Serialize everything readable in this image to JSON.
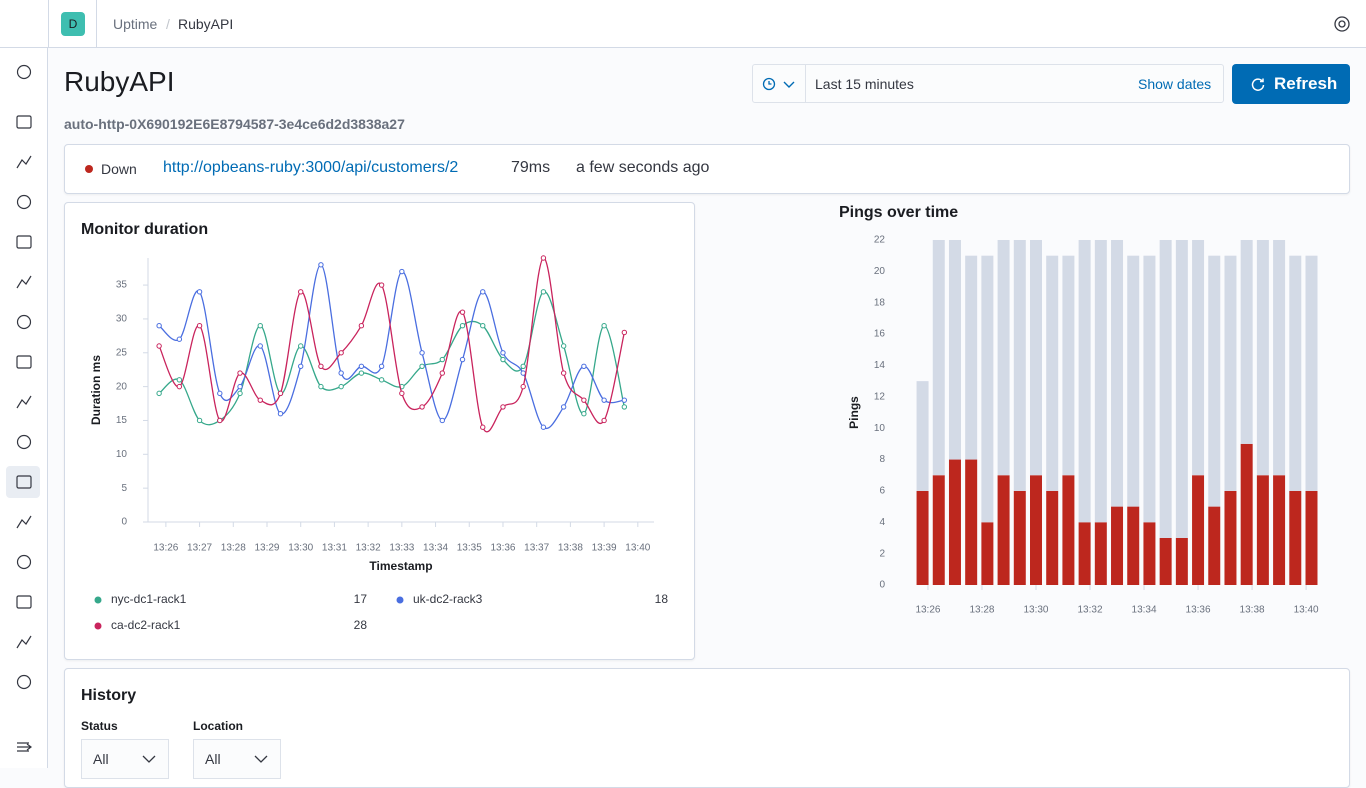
{
  "header": {
    "avatar": "D",
    "breadcrumbs": [
      "Uptime",
      "RubyAPI"
    ]
  },
  "page": {
    "title": "RubyAPI",
    "monitor_id": "auto-http-0X690192E6E8794587-3e4ce6d2d3838a27",
    "time_range": "Last 15 minutes",
    "show_dates": "Show dates",
    "refresh": "Refresh"
  },
  "status": {
    "state": "Down",
    "url": "http://opbeans-ruby:3000/api/customers/2",
    "duration": "79ms",
    "checked": "a few seconds ago"
  },
  "chart_data": [
    {
      "type": "line",
      "title": "Monitor duration",
      "x_label": "Timestamp",
      "y_label": "Duration ms",
      "grid": false,
      "legend": "bottom",
      "x": [
        25.8,
        26.4,
        27.0,
        27.6,
        28.2,
        28.8,
        29.4,
        30.0,
        30.6,
        31.2,
        31.8,
        32.4,
        33.0,
        33.6,
        34.2,
        34.8,
        35.4,
        36.0,
        36.6,
        37.2,
        37.8,
        38.4,
        39.0,
        39.6
      ],
      "xlim": [
        25.47,
        40.48
      ],
      "xticks": [
        {
          "value": 26,
          "label": "13:26"
        },
        {
          "value": 27,
          "label": "13:27"
        },
        {
          "value": 28,
          "label": "13:28"
        },
        {
          "value": 29,
          "label": "13:29"
        },
        {
          "value": 30,
          "label": "13:30"
        },
        {
          "value": 31,
          "label": "13:31"
        },
        {
          "value": 32,
          "label": "13:32"
        },
        {
          "value": 33,
          "label": "13:33"
        },
        {
          "value": 34,
          "label": "13:34"
        },
        {
          "value": 35,
          "label": "13:35"
        },
        {
          "value": 36,
          "label": "13:36"
        },
        {
          "value": 37,
          "label": "13:37"
        },
        {
          "value": 38,
          "label": "13:38"
        },
        {
          "value": 39,
          "label": "13:39"
        },
        {
          "value": 40,
          "label": "13:40"
        }
      ],
      "ylim": [
        0,
        39
      ],
      "yticks": [
        0,
        5,
        10,
        15,
        20,
        25,
        30,
        35
      ],
      "series": [
        {
          "name": "nyc-dc1-rack1",
          "color": "#36a88b",
          "values": [
            19,
            21,
            15,
            15,
            19,
            29,
            19,
            26,
            20,
            20,
            22,
            21,
            20,
            23,
            24,
            29,
            29,
            24,
            23,
            34,
            26,
            16,
            29,
            17
          ]
        },
        {
          "name": "uk-dc2-rack3",
          "color": "#4a6ee0",
          "values": [
            29,
            27,
            34,
            19,
            20,
            26,
            16,
            23,
            38,
            22,
            23,
            23,
            37,
            25,
            15,
            24,
            34,
            25,
            22,
            14,
            17,
            23,
            18,
            18
          ]
        },
        {
          "name": "ca-dc2-rack1",
          "color": "#c9245d",
          "values": [
            26,
            20,
            29,
            15,
            22,
            18,
            19,
            34,
            23,
            25,
            29,
            35,
            19,
            17,
            22,
            31,
            14,
            17,
            20,
            39,
            22,
            18,
            15,
            28
          ]
        }
      ]
    },
    {
      "type": "bar",
      "stacked": true,
      "title": "Pings over time",
      "y_label": "Pings",
      "grid": false,
      "x": [
        25.8,
        26.4,
        27.0,
        27.6,
        28.2,
        28.8,
        29.4,
        30.0,
        30.6,
        31.2,
        31.8,
        32.4,
        33.0,
        33.6,
        34.2,
        34.8,
        35.4,
        36.0,
        36.6,
        37.2,
        37.8,
        38.4,
        39.0,
        39.6,
        40.2
      ],
      "xlim": [
        25.15,
        40.7
      ],
      "xticks": [
        {
          "value": 26,
          "label": "13:26"
        },
        {
          "value": 28,
          "label": "13:28"
        },
        {
          "value": 30,
          "label": "13:30"
        },
        {
          "value": 32,
          "label": "13:32"
        },
        {
          "value": 34,
          "label": "13:34"
        },
        {
          "value": 36,
          "label": "13:36"
        },
        {
          "value": 38,
          "label": "13:38"
        },
        {
          "value": 40,
          "label": "13:40"
        }
      ],
      "ylim": [
        0,
        22
      ],
      "yticks": [
        0,
        2,
        4,
        6,
        8,
        10,
        12,
        14,
        16,
        18,
        20,
        22
      ],
      "series": [
        {
          "color": "#bd271e",
          "values": [
            6,
            7,
            8,
            8,
            4,
            7,
            6,
            7,
            6,
            7,
            4,
            4,
            5,
            5,
            4,
            3,
            3,
            7,
            5,
            6,
            9,
            7,
            7,
            6,
            6
          ]
        },
        {
          "color": "#d3dae6",
          "values": [
            7,
            15,
            14,
            13,
            17,
            15,
            16,
            15,
            15,
            14,
            18,
            18,
            17,
            16,
            17,
            19,
            19,
            15,
            16,
            15,
            13,
            15,
            15,
            15,
            15
          ]
        }
      ]
    }
  ],
  "history": {
    "title": "History",
    "filters": [
      {
        "label": "Status",
        "value": "All"
      },
      {
        "label": "Location",
        "value": "All"
      }
    ]
  }
}
